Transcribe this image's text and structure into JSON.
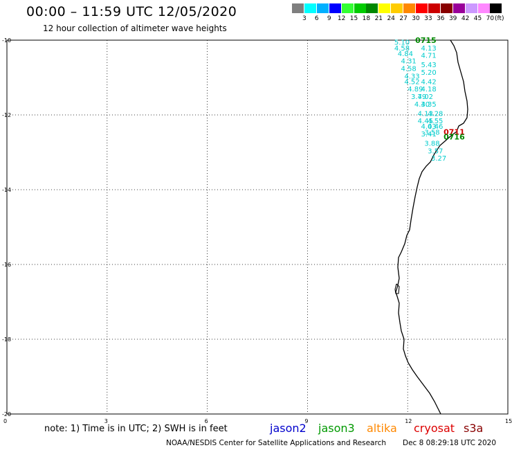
{
  "header": {
    "title": "00:00 – 11:59 UTC 12/05/2020",
    "subtitle": "12 hour collection of altimeter wave heights"
  },
  "legend": {
    "unit": "(ft)",
    "items": [
      {
        "label": "3",
        "color": "#7f7f7f"
      },
      {
        "label": "6",
        "color": "#00ffff"
      },
      {
        "label": "9",
        "color": "#00b0ff"
      },
      {
        "label": "12",
        "color": "#0000ff"
      },
      {
        "label": "15",
        "color": "#33ff33"
      },
      {
        "label": "18",
        "color": "#00cc00"
      },
      {
        "label": "21",
        "color": "#008800"
      },
      {
        "label": "24",
        "color": "#ffff00"
      },
      {
        "label": "27",
        "color": "#ffcc00"
      },
      {
        "label": "30",
        "color": "#ff8800"
      },
      {
        "label": "33",
        "color": "#ff0000"
      },
      {
        "label": "36",
        "color": "#cc0000"
      },
      {
        "label": "39",
        "color": "#880000"
      },
      {
        "label": "42",
        "color": "#990099"
      },
      {
        "label": "45",
        "color": "#cc99ff"
      },
      {
        "label": "70",
        "color": "#ff88ff"
      },
      {
        "label": "",
        "color": "#000000"
      }
    ]
  },
  "map": {
    "x_ticks": [
      "0",
      "3",
      "6",
      "9",
      "12",
      "15"
    ],
    "y_ticks": [
      "-10",
      "-12",
      "-14",
      "-16",
      "-18",
      "-20"
    ],
    "lon_range": [
      0,
      15
    ],
    "lat_range": [
      -20,
      -10
    ],
    "grid": true,
    "wave_heights": [
      {
        "lon": 11.6,
        "lat": -10.05,
        "value": "5.10"
      },
      {
        "lon": 11.6,
        "lat": -10.2,
        "value": "4.58"
      },
      {
        "lon": 11.7,
        "lat": -10.35,
        "value": "4.84"
      },
      {
        "lon": 11.8,
        "lat": -10.55,
        "value": "4.31"
      },
      {
        "lon": 11.8,
        "lat": -10.75,
        "value": "4.58"
      },
      {
        "lon": 11.9,
        "lat": -10.95,
        "value": "4.33"
      },
      {
        "lon": 11.9,
        "lat": -11.1,
        "value": "4.52"
      },
      {
        "lon": 12.0,
        "lat": -11.3,
        "value": "4.89"
      },
      {
        "lon": 12.1,
        "lat": -11.5,
        "value": "3.79"
      },
      {
        "lon": 12.2,
        "lat": -11.7,
        "value": "4.30"
      },
      {
        "lon": 12.3,
        "lat": -11.95,
        "value": "4.13"
      },
      {
        "lon": 12.3,
        "lat": -12.15,
        "value": "4.45"
      },
      {
        "lon": 12.4,
        "lat": -12.3,
        "value": "4.03"
      },
      {
        "lon": 12.4,
        "lat": -12.5,
        "value": "3.41"
      },
      {
        "lon": 12.5,
        "lat": -12.75,
        "value": "3.88"
      },
      {
        "lon": 12.6,
        "lat": -12.95,
        "value": "3.57"
      },
      {
        "lon": 12.7,
        "lat": -13.15,
        "value": "3.27"
      },
      {
        "lon": 12.4,
        "lat": -10.2,
        "value": "4.13"
      },
      {
        "lon": 12.4,
        "lat": -10.4,
        "value": "4.71"
      },
      {
        "lon": 12.4,
        "lat": -10.65,
        "value": "5.43"
      },
      {
        "lon": 12.4,
        "lat": -10.85,
        "value": "5.20"
      },
      {
        "lon": 12.4,
        "lat": -11.1,
        "value": "4.42"
      },
      {
        "lon": 12.4,
        "lat": -11.3,
        "value": "4.18"
      },
      {
        "lon": 12.3,
        "lat": -11.5,
        "value": "4.02"
      },
      {
        "lon": 12.4,
        "lat": -11.7,
        "value": "4.35"
      },
      {
        "lon": 12.6,
        "lat": -11.95,
        "value": "4.28"
      },
      {
        "lon": 12.6,
        "lat": -12.15,
        "value": "4.55"
      },
      {
        "lon": 12.6,
        "lat": -12.3,
        "value": "4.46"
      },
      {
        "lon": 12.5,
        "lat": -12.45,
        "value": "3.58"
      }
    ],
    "passes": [
      {
        "lon": 12.35,
        "lat": -10.0,
        "time": "0715",
        "color": "#008800"
      },
      {
        "lon": 13.2,
        "lat": -12.45,
        "time": "0711",
        "color": "#cc0000"
      },
      {
        "lon": 13.2,
        "lat": -12.58,
        "time": "0716",
        "color": "#008800"
      }
    ]
  },
  "footer": {
    "note": "note: 1) Time is in UTC; 2) SWH is in feet",
    "satellites": [
      {
        "name": "jason2",
        "color": "#0000cc"
      },
      {
        "name": "jason3",
        "color": "#009900"
      },
      {
        "name": "altika",
        "color": "#ff8800"
      },
      {
        "name": "cryosat",
        "color": "#dd0000"
      },
      {
        "name": "s3a",
        "color": "#880000"
      }
    ],
    "credit": "NOAA/NESDIS Center for Satellite Applications and Research",
    "timestamp": "Dec  8 08:29:18 UTC 2020"
  }
}
